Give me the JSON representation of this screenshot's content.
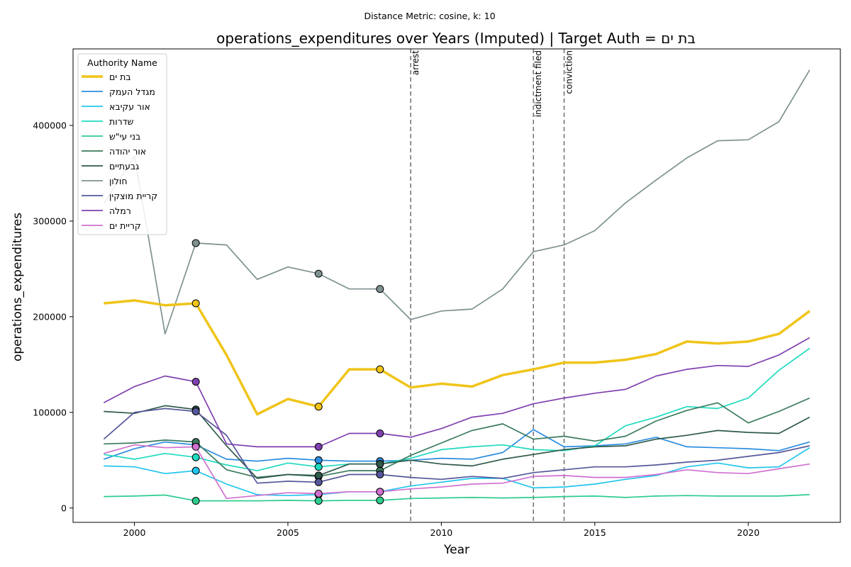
{
  "chart_data": {
    "type": "line",
    "suptitle": "Distance Metric: cosine, k: 10",
    "title": "operations_expenditures over Years (Imputed) | Target Auth = בת ים",
    "xlabel": "Year",
    "ylabel": "operations_expenditures",
    "xlim": [
      1998,
      2023
    ],
    "ylim": [
      -15000,
      480000
    ],
    "xticks": [
      2000,
      2005,
      2010,
      2015,
      2020
    ],
    "yticks": [
      0,
      100000,
      200000,
      300000,
      400000
    ],
    "x": [
      1999,
      2000,
      2001,
      2002,
      2003,
      2004,
      2005,
      2006,
      2007,
      2008,
      2009,
      2010,
      2011,
      2012,
      2013,
      2014,
      2015,
      2016,
      2017,
      2018,
      2019,
      2020,
      2021,
      2022
    ],
    "legend": {
      "title": "Authority Name",
      "position": "upper left"
    },
    "events": [
      {
        "year": 2009,
        "label": "arrest"
      },
      {
        "year": 2013,
        "label": "indictment filed"
      },
      {
        "year": 2014,
        "label": "conviction"
      }
    ],
    "imputed_years": [
      2002,
      2006,
      2008
    ],
    "series": [
      {
        "name": "בת ים",
        "color": "#f0c419",
        "target": true,
        "values": [
          214000,
          217000,
          212000,
          214000,
          160000,
          98000,
          114000,
          106000,
          145000,
          145000,
          126000,
          130000,
          127000,
          139000,
          145000,
          152000,
          152000,
          155000,
          161000,
          174000,
          172000,
          174000,
          182000,
          206000
        ]
      },
      {
        "name": "מגדל העמק",
        "color": "#2b8de0",
        "values": [
          51000,
          62000,
          69000,
          66000,
          51000,
          49000,
          52000,
          50000,
          49000,
          49000,
          50000,
          52000,
          51000,
          58000,
          82000,
          64000,
          65000,
          67000,
          74000,
          64000,
          63000,
          62000,
          60000,
          69000
        ]
      },
      {
        "name": "אור עקיבא",
        "color": "#22c5ee",
        "values": [
          44000,
          43000,
          36000,
          39000,
          25000,
          14000,
          13000,
          14000,
          17000,
          17000,
          23000,
          27000,
          31000,
          31000,
          21000,
          22000,
          25000,
          30000,
          34000,
          43000,
          47000,
          42000,
          43000,
          63000
        ]
      },
      {
        "name": "שדרות",
        "color": "#1fdac0",
        "values": [
          56000,
          51000,
          57000,
          53000,
          45000,
          39000,
          47000,
          43000,
          46000,
          46000,
          52000,
          61000,
          64000,
          66000,
          61000,
          60000,
          65000,
          86000,
          95000,
          106000,
          104000,
          115000,
          144000,
          167000
        ]
      },
      {
        "name": "בני עי\"ש",
        "color": "#2ecc8f",
        "values": [
          12000,
          12500,
          13500,
          7500,
          7500,
          7500,
          8000,
          7500,
          8000,
          8000,
          10000,
          10500,
          11000,
          10500,
          11000,
          12000,
          12500,
          11000,
          12500,
          13000,
          12500,
          12500,
          12500,
          14000
        ]
      },
      {
        "name": "אור יהודה",
        "color": "#3a7a5c",
        "values": [
          67000,
          68000,
          71000,
          69000,
          40000,
          32000,
          35000,
          33000,
          39000,
          39000,
          55000,
          68000,
          81000,
          88000,
          72000,
          75000,
          70000,
          75000,
          91000,
          102000,
          110000,
          89000,
          101000,
          115000
        ]
      },
      {
        "name": "גבעתיים",
        "color": "#2f5a4a",
        "values": [
          101000,
          99000,
          107000,
          103000,
          65000,
          31000,
          35000,
          34000,
          46000,
          46000,
          50000,
          46000,
          44000,
          51000,
          56000,
          61000,
          64000,
          65000,
          72000,
          76000,
          81000,
          79000,
          78000,
          95000
        ]
      },
      {
        "name": "חולון",
        "color": "#7f9191",
        "values": [
          318000,
          368000,
          182000,
          277000,
          275000,
          239000,
          252000,
          245000,
          229000,
          229000,
          197000,
          206000,
          208000,
          229000,
          268000,
          275000,
          290000,
          319000,
          343000,
          366000,
          384000,
          385000,
          404000,
          458000
        ]
      },
      {
        "name": "קריית מוצקין",
        "color": "#56579a",
        "values": [
          72000,
          100000,
          104000,
          101000,
          76000,
          26000,
          28000,
          27000,
          35000,
          35000,
          32000,
          30000,
          33000,
          31000,
          37000,
          40000,
          43000,
          43000,
          45000,
          48000,
          50000,
          54000,
          58000,
          65000
        ]
      },
      {
        "name": "רמלה",
        "color": "#8040b0",
        "values": [
          110000,
          127000,
          138000,
          132000,
          67000,
          64000,
          64000,
          64000,
          78000,
          78000,
          74000,
          83000,
          95000,
          99000,
          109000,
          115000,
          120000,
          124000,
          138000,
          145000,
          149000,
          148000,
          160000,
          178000
        ]
      },
      {
        "name": "קריית ים",
        "color": "#d070d0",
        "values": [
          57000,
          66000,
          63000,
          64000,
          10000,
          13000,
          16000,
          15000,
          17000,
          17000,
          20000,
          22000,
          25000,
          26000,
          33000,
          34000,
          32000,
          32000,
          35000,
          40000,
          37000,
          36000,
          41000,
          46000
        ]
      }
    ]
  }
}
